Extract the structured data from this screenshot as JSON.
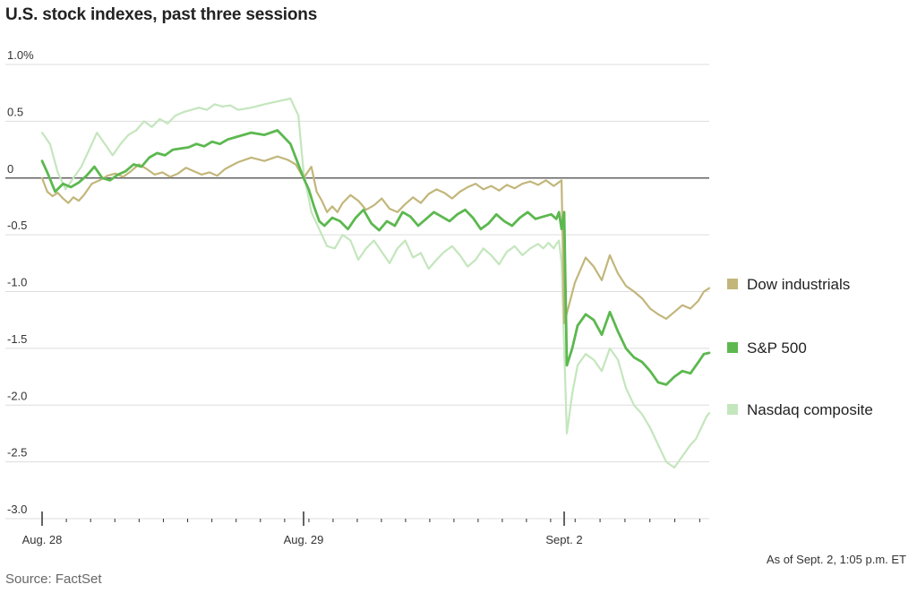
{
  "title": "U.S. stock indexes, past three sessions",
  "note": "As of Sept. 2, 1:05 p.m. ET",
  "source": "Source: FactSet",
  "chart_data": {
    "type": "line",
    "title": "U.S. stock indexes, past three sessions",
    "ylim": [
      -3.0,
      1.0
    ],
    "yticks": [
      1.0,
      0.5,
      0,
      -0.5,
      -1.0,
      -1.5,
      -2.0,
      -2.5,
      -3.0
    ],
    "ytick_labels": [
      "1.0%",
      "0.5",
      "0",
      "-0.5",
      "-1.0",
      "-1.5",
      "-2.0",
      "-2.5",
      "-3.0"
    ],
    "xtick_labels": [
      "Aug. 28",
      "Aug. 29",
      "Sept. 2"
    ],
    "sessions": 3,
    "grid": true,
    "legend_position": "right",
    "series": [
      {
        "name": "Dow industrials",
        "color": "#c2b67b",
        "values": [
          0.0,
          -0.12,
          -0.16,
          -0.13,
          -0.18,
          -0.22,
          -0.17,
          -0.2,
          -0.15,
          -0.05,
          -0.02,
          0.02,
          0.04,
          0.01,
          0.06,
          0.12,
          0.08,
          0.03,
          0.05,
          0.01,
          0.04,
          0.09,
          0.06,
          0.03,
          0.05,
          0.02,
          0.08,
          0.14,
          0.18,
          0.15,
          0.19,
          0.16,
          0.12,
          0.0,
          0.1,
          -0.12,
          -0.2,
          -0.3,
          -0.25,
          -0.3,
          -0.22,
          -0.15,
          -0.2,
          -0.28,
          -0.24,
          -0.18,
          -0.27,
          -0.3,
          -0.23,
          -0.17,
          -0.22,
          -0.14,
          -0.1,
          -0.13,
          -0.18,
          -0.12,
          -0.08,
          -0.05,
          -0.1,
          -0.07,
          -0.11,
          -0.06,
          -0.09,
          -0.05,
          -0.03,
          -0.06,
          -0.02,
          -0.07,
          -0.02,
          -1.28,
          -1.1,
          -0.92,
          -0.7,
          -0.78,
          -0.9,
          -0.68,
          -0.84,
          -0.95,
          -1.0,
          -1.06,
          -1.15,
          -1.2,
          -1.24,
          -1.18,
          -1.12,
          -1.15,
          -1.08,
          -1.0,
          -0.97
        ],
        "x": [
          0.0,
          0.02,
          0.04,
          0.06,
          0.08,
          0.1,
          0.12,
          0.14,
          0.16,
          0.19,
          0.22,
          0.25,
          0.28,
          0.31,
          0.34,
          0.37,
          0.4,
          0.43,
          0.46,
          0.49,
          0.52,
          0.55,
          0.58,
          0.61,
          0.64,
          0.67,
          0.7,
          0.75,
          0.8,
          0.85,
          0.9,
          0.94,
          0.97,
          1.0,
          1.03,
          1.05,
          1.07,
          1.09,
          1.11,
          1.13,
          1.15,
          1.18,
          1.21,
          1.24,
          1.27,
          1.3,
          1.33,
          1.36,
          1.39,
          1.42,
          1.45,
          1.48,
          1.51,
          1.54,
          1.57,
          1.6,
          1.63,
          1.66,
          1.69,
          1.72,
          1.75,
          1.78,
          1.81,
          1.84,
          1.87,
          1.9,
          1.93,
          1.96,
          1.99,
          2.0,
          2.02,
          2.04,
          2.08,
          2.11,
          2.14,
          2.17,
          2.2,
          2.23,
          2.26,
          2.29,
          2.32,
          2.35,
          2.38,
          2.41,
          2.44,
          2.47,
          2.5,
          2.52,
          2.54
        ]
      },
      {
        "name": "S&P 500",
        "color": "#5cb84f",
        "values": [
          0.15,
          0.05,
          -0.12,
          -0.05,
          -0.08,
          -0.04,
          0.02,
          0.1,
          0.0,
          -0.02,
          0.03,
          0.06,
          0.12,
          0.1,
          0.18,
          0.22,
          0.2,
          0.25,
          0.26,
          0.27,
          0.3,
          0.28,
          0.32,
          0.3,
          0.34,
          0.36,
          0.38,
          0.4,
          0.38,
          0.42,
          0.3,
          0.0,
          -0.1,
          -0.25,
          -0.38,
          -0.42,
          -0.35,
          -0.38,
          -0.45,
          -0.35,
          -0.28,
          -0.4,
          -0.46,
          -0.38,
          -0.42,
          -0.3,
          -0.34,
          -0.42,
          -0.36,
          -0.3,
          -0.34,
          -0.38,
          -0.32,
          -0.28,
          -0.35,
          -0.45,
          -0.4,
          -0.32,
          -0.38,
          -0.42,
          -0.35,
          -0.3,
          -0.36,
          -0.34,
          -0.32,
          -0.36,
          -0.3,
          -0.45,
          -0.3,
          -1.65,
          -1.5,
          -1.3,
          -1.2,
          -1.25,
          -1.38,
          -1.18,
          -1.35,
          -1.5,
          -1.58,
          -1.62,
          -1.7,
          -1.8,
          -1.82,
          -1.75,
          -1.7,
          -1.72,
          -1.62,
          -1.55,
          -1.54
        ],
        "x": [
          0.0,
          0.02,
          0.05,
          0.08,
          0.11,
          0.14,
          0.17,
          0.2,
          0.23,
          0.26,
          0.29,
          0.32,
          0.35,
          0.38,
          0.41,
          0.44,
          0.47,
          0.5,
          0.53,
          0.56,
          0.59,
          0.62,
          0.65,
          0.68,
          0.71,
          0.74,
          0.77,
          0.8,
          0.85,
          0.9,
          0.95,
          1.0,
          1.02,
          1.04,
          1.06,
          1.08,
          1.11,
          1.14,
          1.17,
          1.2,
          1.23,
          1.26,
          1.29,
          1.32,
          1.35,
          1.38,
          1.41,
          1.44,
          1.47,
          1.5,
          1.53,
          1.56,
          1.59,
          1.62,
          1.65,
          1.68,
          1.71,
          1.74,
          1.77,
          1.8,
          1.83,
          1.86,
          1.89,
          1.92,
          1.95,
          1.97,
          1.98,
          1.99,
          2.0,
          2.01,
          2.03,
          2.05,
          2.08,
          2.11,
          2.14,
          2.17,
          2.2,
          2.23,
          2.26,
          2.29,
          2.32,
          2.35,
          2.38,
          2.41,
          2.44,
          2.47,
          2.5,
          2.52,
          2.54
        ]
      },
      {
        "name": "Nasdaq composite",
        "color": "#c4e6bd",
        "values": [
          0.4,
          0.3,
          0.05,
          -0.1,
          0.0,
          0.1,
          0.25,
          0.4,
          0.3,
          0.2,
          0.3,
          0.38,
          0.42,
          0.5,
          0.45,
          0.52,
          0.48,
          0.55,
          0.58,
          0.6,
          0.62,
          0.6,
          0.65,
          0.63,
          0.64,
          0.6,
          0.62,
          0.65,
          0.7,
          0.55,
          0.05,
          -0.3,
          -0.45,
          -0.6,
          -0.62,
          -0.5,
          -0.55,
          -0.72,
          -0.62,
          -0.55,
          -0.65,
          -0.75,
          -0.62,
          -0.55,
          -0.7,
          -0.66,
          -0.8,
          -0.72,
          -0.65,
          -0.6,
          -0.68,
          -0.78,
          -0.72,
          -0.62,
          -0.68,
          -0.76,
          -0.65,
          -0.6,
          -0.68,
          -0.62,
          -0.58,
          -0.62,
          -0.57,
          -0.62,
          -0.58,
          -0.55,
          -0.75,
          -2.25,
          -1.9,
          -1.65,
          -1.55,
          -1.6,
          -1.7,
          -1.5,
          -1.6,
          -1.85,
          -2.0,
          -2.08,
          -2.2,
          -2.35,
          -2.5,
          -2.55,
          -2.45,
          -2.35,
          -2.3,
          -2.2,
          -2.1,
          -2.07
        ],
        "x": [
          0.0,
          0.03,
          0.06,
          0.09,
          0.12,
          0.15,
          0.18,
          0.21,
          0.24,
          0.27,
          0.3,
          0.33,
          0.36,
          0.39,
          0.42,
          0.45,
          0.48,
          0.51,
          0.54,
          0.57,
          0.6,
          0.63,
          0.66,
          0.69,
          0.72,
          0.75,
          0.8,
          0.85,
          0.95,
          0.98,
          1.0,
          1.03,
          1.06,
          1.09,
          1.12,
          1.15,
          1.18,
          1.21,
          1.24,
          1.27,
          1.3,
          1.33,
          1.36,
          1.39,
          1.42,
          1.45,
          1.48,
          1.51,
          1.54,
          1.57,
          1.6,
          1.63,
          1.66,
          1.69,
          1.72,
          1.75,
          1.78,
          1.81,
          1.84,
          1.87,
          1.9,
          1.92,
          1.94,
          1.96,
          1.97,
          1.98,
          1.99,
          2.01,
          2.03,
          2.05,
          2.08,
          2.11,
          2.14,
          2.17,
          2.2,
          2.23,
          2.26,
          2.29,
          2.32,
          2.35,
          2.38,
          2.41,
          2.44,
          2.47,
          2.49,
          2.51,
          2.53,
          2.54
        ]
      }
    ]
  }
}
